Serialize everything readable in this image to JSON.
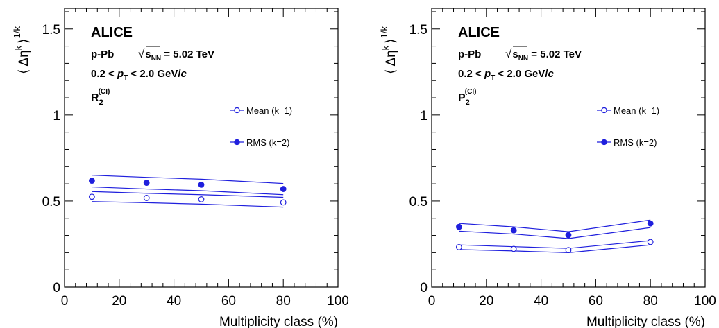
{
  "chart_data": [
    {
      "type": "scatter",
      "xlabel": "Multiplicity class (%)",
      "ylabel_parts": {
        "open": "⟨",
        "delta": "Δη",
        "k": "k",
        "close": "⟩",
        "power": "1/k"
      },
      "xlim": [
        0,
        100
      ],
      "ylim": [
        0,
        1.5
      ],
      "x_ticks": [
        "0",
        "20",
        "40",
        "60",
        "80",
        "100"
      ],
      "y_ticks": [
        "0",
        "0.5",
        "1",
        "1.5"
      ],
      "annotations": {
        "experiment": "ALICE",
        "system": "p-Pb",
        "energy_prefix": "√",
        "energy_s": "s",
        "energy_sub": "NN",
        "energy_value": " = 5.02 TeV",
        "pt_prefix": "0.2 < ",
        "pt_symbol": "p",
        "pt_sub": "T",
        "pt_suffix": " < 2.0 GeV/",
        "pt_c": "c",
        "observable": "R",
        "observable_sub": "2",
        "observable_sup": "(CI)"
      },
      "legend": "right",
      "color": "#1f1fdd",
      "series": [
        {
          "name": "Mean (k=1)",
          "marker": "open-circle",
          "x": [
            10,
            30,
            50,
            80
          ],
          "y": [
            0.525,
            0.518,
            0.51,
            0.492
          ],
          "band_upper": [
            0.555,
            0.545,
            0.537,
            0.522
          ],
          "band_lower": [
            0.497,
            0.49,
            0.482,
            0.465
          ]
        },
        {
          "name": "RMS (k=2)",
          "marker": "filled-circle",
          "x": [
            10,
            30,
            50,
            80
          ],
          "y": [
            0.618,
            0.606,
            0.595,
            0.57
          ],
          "band_upper": [
            0.65,
            0.638,
            0.627,
            0.602
          ],
          "band_lower": [
            0.582,
            0.57,
            0.56,
            0.537
          ]
        }
      ]
    },
    {
      "type": "scatter",
      "xlabel": "Multiplicity class (%)",
      "ylabel_parts": {
        "open": "⟨",
        "delta": "Δη",
        "k": "k",
        "close": "⟩",
        "power": "1/k"
      },
      "xlim": [
        0,
        100
      ],
      "ylim": [
        0,
        1.5
      ],
      "x_ticks": [
        "0",
        "20",
        "40",
        "60",
        "80",
        "100"
      ],
      "y_ticks": [
        "0",
        "0.5",
        "1",
        "1.5"
      ],
      "annotations": {
        "experiment": "ALICE",
        "system": "p-Pb",
        "energy_prefix": "√",
        "energy_s": "s",
        "energy_sub": "NN",
        "energy_value": " = 5.02 TeV",
        "pt_prefix": "0.2 < ",
        "pt_symbol": "p",
        "pt_sub": "T",
        "pt_suffix": " < 2.0 GeV/",
        "pt_c": "c",
        "observable": "P",
        "observable_sub": "2",
        "observable_sup": "(CI)"
      },
      "legend": "right",
      "color": "#1f1fdd",
      "series": [
        {
          "name": "Mean (k=1)",
          "marker": "open-circle",
          "x": [
            10,
            30,
            50,
            80
          ],
          "y": [
            0.232,
            0.222,
            0.215,
            0.262
          ],
          "band_upper": [
            0.245,
            0.235,
            0.225,
            0.27
          ],
          "band_lower": [
            0.218,
            0.21,
            0.2,
            0.245
          ]
        },
        {
          "name": "RMS (k=2)",
          "marker": "filled-circle",
          "x": [
            10,
            30,
            50,
            80
          ],
          "y": [
            0.35,
            0.33,
            0.302,
            0.37
          ],
          "band_upper": [
            0.37,
            0.35,
            0.322,
            0.39
          ],
          "band_lower": [
            0.325,
            0.308,
            0.282,
            0.346
          ]
        }
      ]
    }
  ]
}
